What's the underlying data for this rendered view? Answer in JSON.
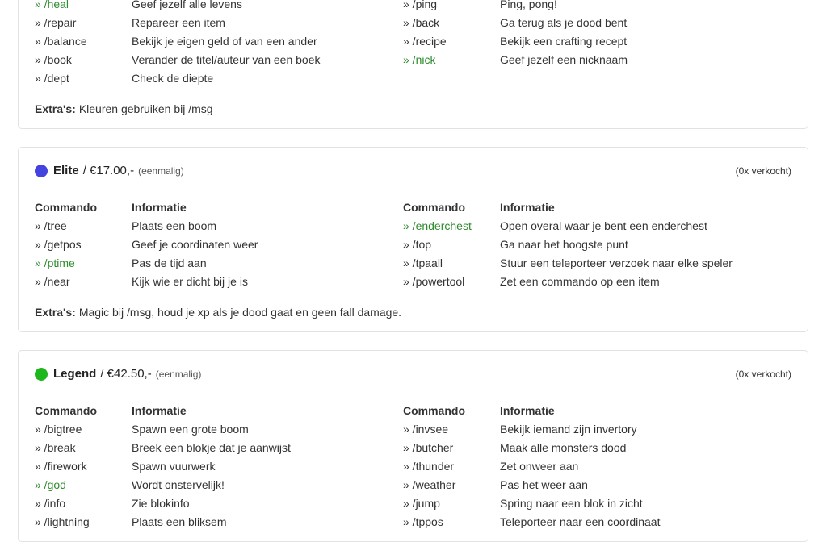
{
  "colors": {
    "text": "#333333",
    "command_green": "#2e8b2e",
    "card_border": "#e2e2e2",
    "elite_dot": "#4343e0",
    "legend_dot": "#1db71d"
  },
  "labels": {
    "bullet": "»",
    "commando": "Commando",
    "informatie": "Informatie",
    "extras": "Extra's:"
  },
  "packages": [
    {
      "rows": [
        {
          "cmd1": "/heal",
          "green1": true,
          "info1": "Geef jezelf alle levens",
          "cmd2": "/ping",
          "info2": "Ping, pong!"
        },
        {
          "cmd1": "/repair",
          "info1": "Repareer een item",
          "cmd2": "/back",
          "info2": "Ga terug als je dood bent"
        },
        {
          "cmd1": "/balance",
          "info1": "Bekijk je eigen geld of van een ander",
          "cmd2": "/recipe",
          "info2": "Bekijk een crafting recept"
        },
        {
          "cmd1": "/book",
          "info1": "Verander de titel/auteur van een boek",
          "cmd2": "/nick",
          "green2": true,
          "info2": "Geef jezelf een nicknaam"
        },
        {
          "cmd1": "/dept",
          "info1": "Check de diepte"
        }
      ],
      "extras": "Kleuren gebruiken bij /msg"
    },
    {
      "name": "Elite",
      "price_line": "/ €17.00,-",
      "billing": "(eenmalig)",
      "sold": "(0x verkocht)",
      "dot": "#4343e0",
      "rows": [
        {
          "cmd1": "/tree",
          "info1": "Plaats een boom",
          "cmd2": "/enderchest",
          "green2": true,
          "info2": "Open overal waar je bent een enderchest"
        },
        {
          "cmd1": "/getpos",
          "info1": "Geef je coordinaten weer",
          "cmd2": "/top",
          "info2": "Ga naar het hoogste punt"
        },
        {
          "cmd1": "/ptime",
          "green1": true,
          "info1": "Pas de tijd aan",
          "cmd2": "/tpaall",
          "info2": "Stuur een teleporteer verzoek naar elke speler"
        },
        {
          "cmd1": "/near",
          "info1": "Kijk wie er dicht bij je is",
          "cmd2": "/powertool",
          "info2": "Zet een commando op een item"
        }
      ],
      "extras": "Magic bij /msg, houd je xp als je dood gaat en geen fall damage."
    },
    {
      "name": "Legend",
      "price_line": "/ €42.50,-",
      "billing": "(eenmalig)",
      "sold": "(0x verkocht)",
      "dot": "#1db71d",
      "rows": [
        {
          "cmd1": "/bigtree",
          "info1": "Spawn een grote boom",
          "cmd2": "/invsee",
          "info2": "Bekijk iemand zijn invertory"
        },
        {
          "cmd1": "/break",
          "info1": "Breek een blokje dat je aanwijst",
          "cmd2": "/butcher",
          "info2": "Maak alle monsters dood"
        },
        {
          "cmd1": "/firework",
          "info1": "Spawn vuurwerk",
          "cmd2": "/thunder",
          "info2": "Zet onweer aan"
        },
        {
          "cmd1": "/god",
          "green1": true,
          "info1": "Wordt onstervelijk!",
          "cmd2": "/weather",
          "info2": "Pas het weer aan"
        },
        {
          "cmd1": "/info",
          "info1": "Zie blokinfo",
          "cmd2": "/jump",
          "info2": "Spring naar een blok in zicht"
        },
        {
          "cmd1": "/lightning",
          "info1": "Plaats een bliksem",
          "cmd2": "/tppos",
          "info2": "Teleporteer naar een coordinaat"
        }
      ]
    }
  ]
}
